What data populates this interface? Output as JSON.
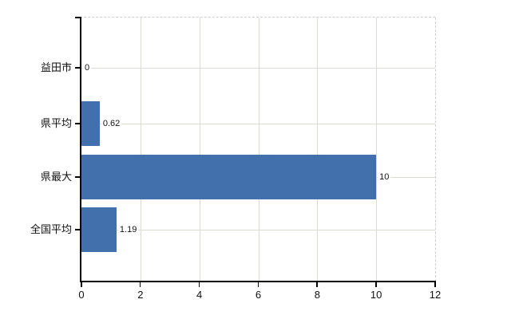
{
  "chart_data": {
    "type": "bar",
    "orientation": "horizontal",
    "title": "",
    "xlabel": "",
    "ylabel": "",
    "categories": [
      "益田市",
      "県平均",
      "県最大",
      "全国平均"
    ],
    "values": [
      0,
      0.62,
      10,
      1.19
    ],
    "value_labels": [
      "0",
      "0.62",
      "10",
      "1.19"
    ],
    "series_order_note": "categories listed top to bottom",
    "xlim": [
      0,
      12
    ],
    "x_ticks": [
      "0",
      "2",
      "4",
      "6",
      "8",
      "10",
      "12"
    ],
    "grid": true,
    "legend": false,
    "bar_color": "#4170ad",
    "axis_color": "#000000",
    "gridline_color": "#d9ddd1",
    "plot_border_style": "dashed",
    "plot_border_color": "#d2cbd2",
    "background_color": "#ffffff"
  }
}
